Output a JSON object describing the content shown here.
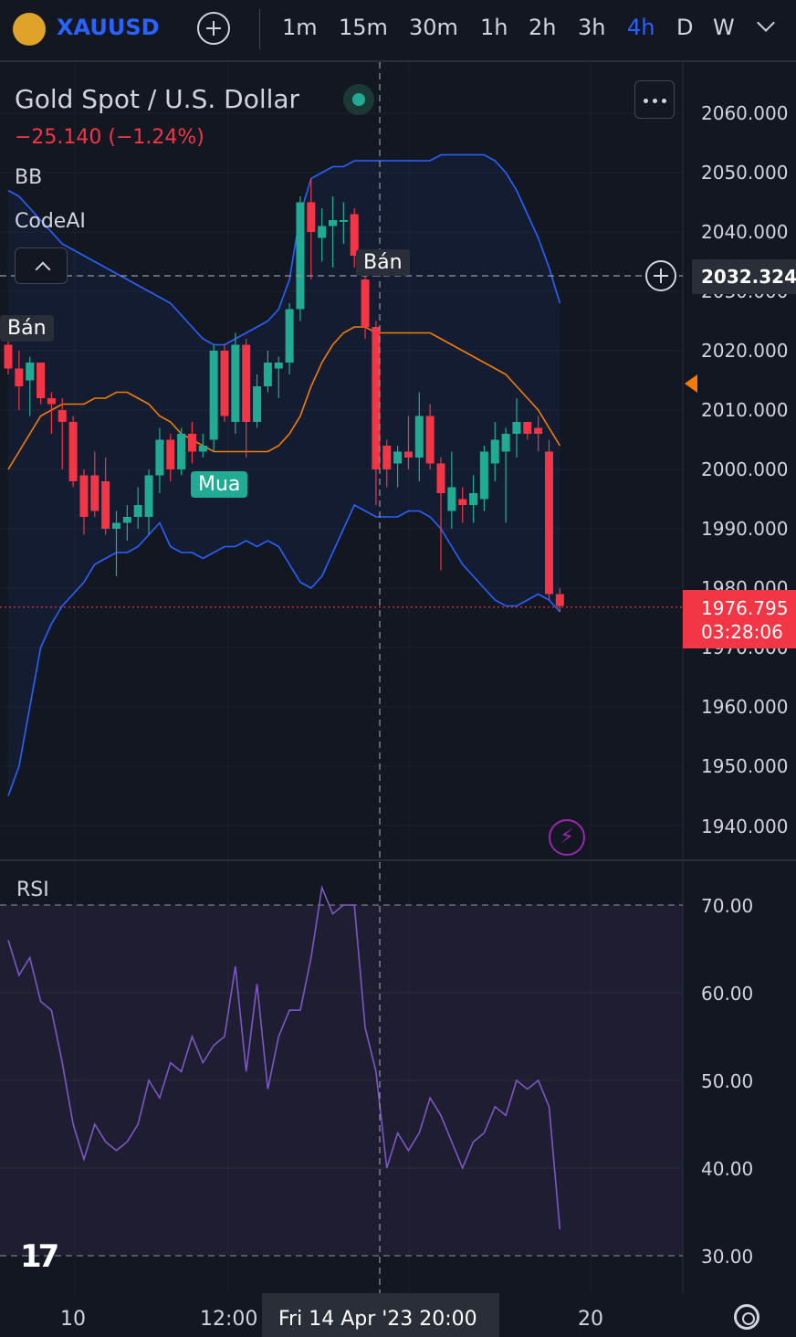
{
  "toolbar": {
    "symbol": "XAUUSD",
    "timeframes": [
      "1m",
      "15m",
      "30m",
      "1h",
      "2h",
      "3h",
      "4h",
      "D",
      "W"
    ],
    "active_timeframe": "4h"
  },
  "legend": {
    "title": "Gold Spot / U.S. Dollar",
    "change": "−25.140 (−1.24%)",
    "indicators": [
      "BB",
      "CodeAI"
    ]
  },
  "signals": {
    "sell_1": "Bán",
    "sell_2": "Bán",
    "buy_1": "Mua"
  },
  "price_axis": {
    "ticks": [
      "2060.000",
      "2050.000",
      "2040.000",
      "2030.000",
      "2020.000",
      "2010.000",
      "2000.000",
      "1990.000",
      "1980.000",
      "1970.000",
      "1960.000",
      "1950.000",
      "1940.000"
    ],
    "crosshair_price": "2032.324",
    "last_price": "1976.795",
    "countdown": "03:28:06"
  },
  "rsi": {
    "label": "RSI",
    "ticks": [
      "70.00",
      "60.00",
      "50.00",
      "40.00",
      "30.00"
    ]
  },
  "time_axis": {
    "ticks": [
      "10",
      "12:00",
      "20"
    ],
    "crosshair_time": "Fri 14 Apr '23  20:00"
  },
  "colors": {
    "up": "#22ab94",
    "down": "#f23645",
    "bb_band": "#2962ff",
    "bb_basis": "#f57c00",
    "rsi": "#7e57c2",
    "accent": "#2962ff"
  },
  "icons": [
    "gold-coin-icon",
    "plus-icon",
    "chevron-down-icon",
    "more-dots-icon",
    "chevron-up-icon",
    "lightning-icon",
    "gear-icon",
    "tradingview-logo"
  ],
  "chart_data": {
    "type": "candlestick",
    "title": "Gold Spot / U.S. Dollar",
    "timeframe": "4h",
    "ylim": [
      1935,
      2065
    ],
    "candles": [
      {
        "o": 2021,
        "h": 2022,
        "l": 2016,
        "c": 2017
      },
      {
        "o": 2017,
        "h": 2020,
        "l": 2010,
        "c": 2014
      },
      {
        "o": 2015,
        "h": 2019,
        "l": 2009,
        "c": 2018
      },
      {
        "o": 2018,
        "h": 2018,
        "l": 2011,
        "c": 2012
      },
      {
        "o": 2012,
        "h": 2013,
        "l": 2006,
        "c": 2011
      },
      {
        "o": 2010,
        "h": 2012,
        "l": 2000,
        "c": 2008
      },
      {
        "o": 2008,
        "h": 2009,
        "l": 1997,
        "c": 1998
      },
      {
        "o": 1999,
        "h": 2000,
        "l": 1989,
        "c": 1992
      },
      {
        "o": 1999,
        "h": 2003,
        "l": 1992,
        "c": 1993
      },
      {
        "o": 1998,
        "h": 2002,
        "l": 1989,
        "c": 1990
      },
      {
        "o": 1990,
        "h": 1993,
        "l": 1982,
        "c": 1991
      },
      {
        "o": 1991,
        "h": 1994,
        "l": 1988,
        "c": 1992
      },
      {
        "o": 1992,
        "h": 1997,
        "l": 1990,
        "c": 1994
      },
      {
        "o": 1992,
        "h": 2000,
        "l": 1989,
        "c": 1999
      },
      {
        "o": 1999,
        "h": 2007,
        "l": 1996,
        "c": 2005
      },
      {
        "o": 2005,
        "h": 2006,
        "l": 1998,
        "c": 2000
      },
      {
        "o": 2000,
        "h": 2007,
        "l": 1999,
        "c": 2006
      },
      {
        "o": 2006,
        "h": 2008,
        "l": 2001,
        "c": 2003
      },
      {
        "o": 2003,
        "h": 2006,
        "l": 2002,
        "c": 2004
      },
      {
        "o": 2005,
        "h": 2021,
        "l": 2003,
        "c": 2020
      },
      {
        "o": 2020,
        "h": 2021,
        "l": 2008,
        "c": 2009
      },
      {
        "o": 2008,
        "h": 2023,
        "l": 2006,
        "c": 2021
      },
      {
        "o": 2021,
        "h": 2022,
        "l": 2002,
        "c": 2008
      },
      {
        "o": 2008,
        "h": 2016,
        "l": 2007,
        "c": 2014
      },
      {
        "o": 2014,
        "h": 2020,
        "l": 2013,
        "c": 2018
      },
      {
        "o": 2017,
        "h": 2019,
        "l": 2012,
        "c": 2018
      },
      {
        "o": 2018,
        "h": 2028,
        "l": 2016,
        "c": 2027
      },
      {
        "o": 2027,
        "h": 2046,
        "l": 2025,
        "c": 2045
      },
      {
        "o": 2045,
        "h": 2049,
        "l": 2032,
        "c": 2040
      },
      {
        "o": 2039,
        "h": 2044,
        "l": 2035,
        "c": 2041
      },
      {
        "o": 2041,
        "h": 2046,
        "l": 2034,
        "c": 2042
      },
      {
        "o": 2042,
        "h": 2045,
        "l": 2038,
        "c": 2042
      },
      {
        "o": 2043,
        "h": 2044,
        "l": 2034,
        "c": 2036
      },
      {
        "o": 2032,
        "h": 2033,
        "l": 2022,
        "c": 2024
      },
      {
        "o": 2024,
        "h": 2025,
        "l": 1994,
        "c": 2000
      },
      {
        "o": 2004,
        "h": 2005,
        "l": 1997,
        "c": 2000
      },
      {
        "o": 2001,
        "h": 2004,
        "l": 1997,
        "c": 2003
      },
      {
        "o": 2003,
        "h": 2009,
        "l": 2000,
        "c": 2002
      },
      {
        "o": 2002,
        "h": 2013,
        "l": 1998,
        "c": 2009
      },
      {
        "o": 2009,
        "h": 2011,
        "l": 2000,
        "c": 2001
      },
      {
        "o": 2001,
        "h": 2002,
        "l": 1983,
        "c": 1996
      },
      {
        "o": 1993,
        "h": 2003,
        "l": 1990,
        "c": 1997
      },
      {
        "o": 1995,
        "h": 1997,
        "l": 1991,
        "c": 1994
      },
      {
        "o": 1994,
        "h": 1999,
        "l": 1991,
        "c": 1996
      },
      {
        "o": 1995,
        "h": 2004,
        "l": 1993,
        "c": 2003
      },
      {
        "o": 2001,
        "h": 2008,
        "l": 1998,
        "c": 2005
      },
      {
        "o": 2003,
        "h": 2007,
        "l": 1991,
        "c": 2006
      },
      {
        "o": 2006,
        "h": 2012,
        "l": 2002,
        "c": 2008
      },
      {
        "o": 2008,
        "h": 2008,
        "l": 2005,
        "c": 2006
      },
      {
        "o": 2007,
        "h": 2009,
        "l": 2003,
        "c": 2006
      },
      {
        "o": 2003,
        "h": 2005,
        "l": 1978,
        "c": 1979
      },
      {
        "o": 1979,
        "h": 1980,
        "l": 1976,
        "c": 1977
      }
    ],
    "bollinger": {
      "upper": [
        2047,
        2046,
        2044,
        2042,
        2040,
        2038,
        2037,
        2036,
        2035,
        2034,
        2033,
        2032,
        2031,
        2030,
        2029,
        2028,
        2026,
        2024,
        2022,
        2021,
        2021,
        2022,
        2023,
        2024,
        2025,
        2027,
        2032,
        2043,
        2049,
        2050,
        2051,
        2051,
        2052,
        2052,
        2052,
        2052,
        2052,
        2052,
        2052,
        2052,
        2053,
        2053,
        2053,
        2053,
        2053,
        2052,
        2050,
        2047,
        2043,
        2039,
        2034,
        2028
      ],
      "basis": [
        2000,
        2003,
        2006,
        2009,
        2010,
        2011,
        2011,
        2011,
        2012,
        2012,
        2013,
        2013,
        2012,
        2011,
        2009,
        2008,
        2006,
        2005,
        2004,
        2003,
        2003,
        2003,
        2003,
        2003,
        2003,
        2004,
        2006,
        2009,
        2014,
        2018,
        2021,
        2023,
        2024,
        2024,
        2023,
        2023,
        2023,
        2023,
        2023,
        2023,
        2022,
        2021,
        2020,
        2019,
        2018,
        2017,
        2016,
        2014,
        2012,
        2010,
        2007,
        2004
      ],
      "lower": [
        1945,
        1950,
        1960,
        1970,
        1974,
        1977,
        1979,
        1981,
        1984,
        1985,
        1986,
        1986,
        1987,
        1989,
        1991,
        1987,
        1986,
        1986,
        1985,
        1986,
        1987,
        1987,
        1988,
        1987,
        1988,
        1987,
        1984,
        1981,
        1980,
        1982,
        1986,
        1990,
        1994,
        1993,
        1992,
        1992,
        1992,
        1993,
        1993,
        1992,
        1990,
        1987,
        1984,
        1982,
        1980,
        1978,
        1977,
        1977,
        1978,
        1979,
        1978,
        1976
      ]
    },
    "rsi": {
      "ylim": [
        30,
        70
      ],
      "values": [
        66,
        62,
        64,
        59,
        58,
        52,
        45,
        41,
        45,
        43,
        42,
        43,
        45,
        50,
        48,
        52,
        51,
        55,
        52,
        54,
        55,
        63,
        51,
        61,
        49,
        55,
        58,
        58,
        64,
        72,
        69,
        70,
        70,
        56,
        51,
        40,
        44,
        42,
        44,
        48,
        46,
        43,
        40,
        43,
        44,
        47,
        46,
        50,
        49,
        50,
        47,
        33
      ]
    }
  }
}
